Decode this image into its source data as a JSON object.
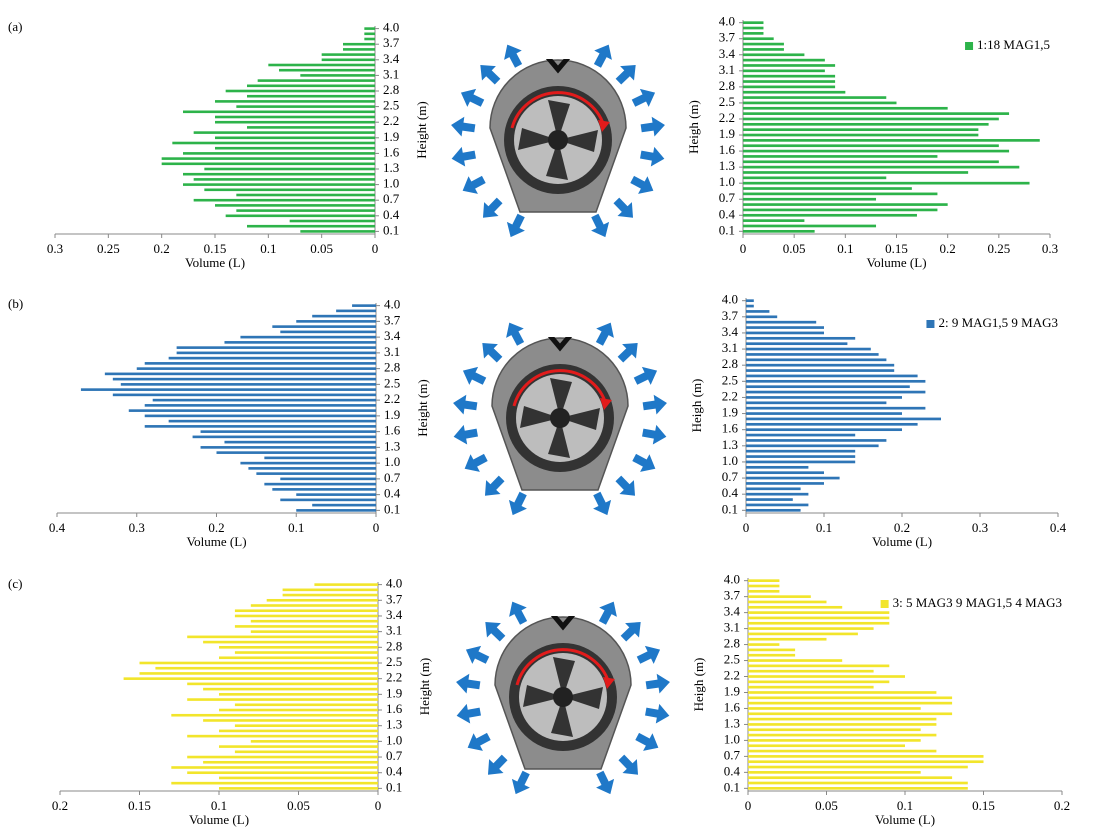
{
  "panels": [
    "(a)",
    "(b)",
    "(c)"
  ],
  "chart_data": [
    {
      "type": "hbar",
      "x_reversed": true,
      "xlabel": "Volume (L)",
      "ylabel": "Height (m)",
      "color": "#2db34a",
      "y": [
        0.1,
        0.2,
        0.3,
        0.4,
        0.5,
        0.6,
        0.7,
        0.8,
        0.9,
        1,
        1.1,
        1.2,
        1.3,
        1.4,
        1.5,
        1.6,
        1.7,
        1.8,
        1.9,
        2,
        2.1,
        2.2,
        2.3,
        2.4,
        2.5,
        2.6,
        2.7,
        2.8,
        2.9,
        3,
        3.1,
        3.2,
        3.3,
        3.4,
        3.5,
        3.6,
        3.7,
        3.8,
        3.9,
        4
      ],
      "values": [
        0.07,
        0.12,
        0.08,
        0.14,
        0.13,
        0.15,
        0.17,
        0.13,
        0.16,
        0.18,
        0.17,
        0.18,
        0.16,
        0.2,
        0.2,
        0.18,
        0.15,
        0.19,
        0.15,
        0.17,
        0.12,
        0.15,
        0.15,
        0.18,
        0.13,
        0.15,
        0.12,
        0.14,
        0.12,
        0.11,
        0.07,
        0.09,
        0.1,
        0.05,
        0.05,
        0.03,
        0.03,
        0.01,
        0.01,
        0.01
      ],
      "xlim": [
        0,
        0.3
      ],
      "xticks": [
        0,
        0.05,
        0.1,
        0.15,
        0.2,
        0.25,
        0.3
      ],
      "ylim": [
        0.05,
        4.05
      ],
      "yticks": [
        0.1,
        0.4,
        0.7,
        {
          "value": 1,
          "label": "1.0"
        },
        1.3,
        1.6,
        1.9,
        2.2,
        2.5,
        2.8,
        3.1,
        3.4,
        3.7,
        {
          "value": 4,
          "label": "4.0"
        }
      ]
    },
    {
      "type": "hbar",
      "x_reversed": false,
      "xlabel": "Volume (L)",
      "ylabel": "Heigh (m)",
      "legend": "upper right",
      "y": [
        0.1,
        0.2,
        0.3,
        0.4,
        0.5,
        0.6,
        0.7,
        0.8,
        0.9,
        1,
        1.1,
        1.2,
        1.3,
        1.4,
        1.5,
        1.6,
        1.7,
        1.8,
        1.9,
        2,
        2.1,
        2.2,
        2.3,
        2.4,
        2.5,
        2.6,
        2.7,
        2.8,
        2.9,
        3,
        3.1,
        3.2,
        3.3,
        3.4,
        3.5,
        3.6,
        3.7,
        3.8,
        3.9,
        4
      ],
      "series": [
        {
          "name": "1:18 MAG1,5",
          "color": "#2db34a",
          "values": [
            0.07,
            0.13,
            0.06,
            0.17,
            0.19,
            0.2,
            0.13,
            0.19,
            0.165,
            0.28,
            0.14,
            0.22,
            0.27,
            0.25,
            0.19,
            0.26,
            0.25,
            0.29,
            0.23,
            0.23,
            0.24,
            0.25,
            0.26,
            0.2,
            0.15,
            0.14,
            0.1,
            0.09,
            0.09,
            0.09,
            0.08,
            0.09,
            0.08,
            0.06,
            0.04,
            0.04,
            0.03,
            0.02,
            0.02,
            0.02
          ]
        }
      ],
      "xlim": [
        0,
        0.3
      ],
      "xticks": [
        0,
        0.05,
        0.1,
        0.15,
        0.2,
        0.25,
        0.3
      ],
      "ylim": [
        0.05,
        4.05
      ],
      "yticks": [
        0.1,
        0.4,
        0.7,
        {
          "value": 1,
          "label": "1.0"
        },
        1.3,
        1.6,
        1.9,
        2.2,
        2.5,
        2.8,
        3.1,
        3.4,
        3.7,
        {
          "value": 4,
          "label": "4.0"
        }
      ]
    },
    {
      "type": "hbar",
      "x_reversed": true,
      "xlabel": "Volume (L)",
      "ylabel": "Height (m)",
      "color": "#2e75b6",
      "y": [
        0.1,
        0.2,
        0.3,
        0.4,
        0.5,
        0.6,
        0.7,
        0.8,
        0.9,
        1,
        1.1,
        1.2,
        1.3,
        1.4,
        1.5,
        1.6,
        1.7,
        1.8,
        1.9,
        2,
        2.1,
        2.2,
        2.3,
        2.4,
        2.5,
        2.6,
        2.7,
        2.8,
        2.9,
        3,
        3.1,
        3.2,
        3.3,
        3.4,
        3.5,
        3.6,
        3.7,
        3.8,
        3.9,
        4
      ],
      "values": [
        0.1,
        0.08,
        0.12,
        0.1,
        0.13,
        0.14,
        0.12,
        0.15,
        0.16,
        0.17,
        0.14,
        0.2,
        0.22,
        0.19,
        0.23,
        0.22,
        0.29,
        0.26,
        0.29,
        0.31,
        0.29,
        0.28,
        0.33,
        0.37,
        0.32,
        0.33,
        0.34,
        0.3,
        0.29,
        0.26,
        0.25,
        0.25,
        0.19,
        0.17,
        0.12,
        0.13,
        0.1,
        0.08,
        0.05,
        0.03
      ],
      "xlim": [
        0,
        0.4
      ],
      "xticks": [
        0,
        0.1,
        0.2,
        0.3,
        0.4
      ],
      "ylim": [
        0.05,
        4.05
      ],
      "yticks": [
        0.1,
        0.4,
        0.7,
        {
          "value": 1,
          "label": "1.0"
        },
        1.3,
        1.6,
        1.9,
        2.2,
        2.5,
        2.8,
        3.1,
        3.4,
        3.7,
        {
          "value": 4,
          "label": "4.0"
        }
      ]
    },
    {
      "type": "hbar",
      "x_reversed": false,
      "xlabel": "Volume (L)",
      "ylabel": "Heigh (m)",
      "legend": "upper right",
      "y": [
        0.1,
        0.2,
        0.3,
        0.4,
        0.5,
        0.6,
        0.7,
        0.8,
        0.9,
        1,
        1.1,
        1.2,
        1.3,
        1.4,
        1.5,
        1.6,
        1.7,
        1.8,
        1.9,
        2,
        2.1,
        2.2,
        2.3,
        2.4,
        2.5,
        2.6,
        2.7,
        2.8,
        2.9,
        3,
        3.1,
        3.2,
        3.3,
        3.4,
        3.5,
        3.6,
        3.7,
        3.8,
        3.9,
        4
      ],
      "series": [
        {
          "name": "2: 9 MAG1,5 9 MAG3",
          "color": "#2e75b6",
          "values": [
            0.07,
            0.08,
            0.06,
            0.08,
            0.07,
            0.1,
            0.12,
            0.1,
            0.08,
            0.14,
            0.14,
            0.14,
            0.17,
            0.18,
            0.14,
            0.2,
            0.22,
            0.25,
            0.2,
            0.23,
            0.18,
            0.2,
            0.23,
            0.21,
            0.23,
            0.22,
            0.19,
            0.19,
            0.18,
            0.17,
            0.16,
            0.13,
            0.14,
            0.1,
            0.1,
            0.09,
            0.04,
            0.03,
            0.01,
            0.01
          ]
        }
      ],
      "xlim": [
        0,
        0.4
      ],
      "xticks": [
        0,
        0.1,
        0.2,
        0.3,
        0.4
      ],
      "ylim": [
        0.05,
        4.05
      ],
      "yticks": [
        0.1,
        0.4,
        0.7,
        {
          "value": 1,
          "label": "1.0"
        },
        1.3,
        1.6,
        1.9,
        2.2,
        2.5,
        2.8,
        3.1,
        3.4,
        3.7,
        {
          "value": 4,
          "label": "4.0"
        }
      ]
    },
    {
      "type": "hbar",
      "x_reversed": true,
      "xlabel": "Volume (L)",
      "ylabel": "Height (m)",
      "color": "#f2e52b",
      "y": [
        0.1,
        0.2,
        0.3,
        0.4,
        0.5,
        0.6,
        0.7,
        0.8,
        0.9,
        1,
        1.1,
        1.2,
        1.3,
        1.4,
        1.5,
        1.6,
        1.7,
        1.8,
        1.9,
        2,
        2.1,
        2.2,
        2.3,
        2.4,
        2.5,
        2.6,
        2.7,
        2.8,
        2.9,
        3,
        3.1,
        3.2,
        3.3,
        3.4,
        3.5,
        3.6,
        3.7,
        3.8,
        3.9,
        4
      ],
      "values": [
        0.1,
        0.13,
        0.1,
        0.12,
        0.13,
        0.11,
        0.12,
        0.09,
        0.1,
        0.08,
        0.12,
        0.1,
        0.09,
        0.11,
        0.13,
        0.1,
        0.09,
        0.12,
        0.1,
        0.11,
        0.12,
        0.16,
        0.15,
        0.14,
        0.15,
        0.1,
        0.09,
        0.1,
        0.11,
        0.12,
        0.08,
        0.09,
        0.08,
        0.09,
        0.09,
        0.08,
        0.07,
        0.06,
        0.06,
        0.04
      ],
      "xlim": [
        0,
        0.2
      ],
      "xticks": [
        0,
        0.05,
        0.1,
        0.15,
        0.2
      ],
      "ylim": [
        0.05,
        4.05
      ],
      "yticks": [
        0.1,
        0.4,
        0.7,
        {
          "value": 1,
          "label": "1.0"
        },
        1.3,
        1.6,
        1.9,
        2.2,
        2.5,
        2.8,
        3.1,
        3.4,
        3.7,
        {
          "value": 4,
          "label": "4.0"
        }
      ]
    },
    {
      "type": "hbar",
      "x_reversed": false,
      "xlabel": "Volume (L)",
      "ylabel": "Heigh (m)",
      "legend": "upper right",
      "y": [
        0.1,
        0.2,
        0.3,
        0.4,
        0.5,
        0.6,
        0.7,
        0.8,
        0.9,
        1,
        1.1,
        1.2,
        1.3,
        1.4,
        1.5,
        1.6,
        1.7,
        1.8,
        1.9,
        2,
        2.1,
        2.2,
        2.3,
        2.4,
        2.5,
        2.6,
        2.7,
        2.8,
        2.9,
        3,
        3.1,
        3.2,
        3.3,
        3.4,
        3.5,
        3.6,
        3.7,
        3.8,
        3.9,
        4
      ],
      "series": [
        {
          "name": "3: 5 MAG3 9 MAG1,5 4 MAG3",
          "color": "#f2e52b",
          "values": [
            0.14,
            0.14,
            0.13,
            0.11,
            0.14,
            0.15,
            0.15,
            0.12,
            0.1,
            0.11,
            0.12,
            0.11,
            0.12,
            0.12,
            0.13,
            0.11,
            0.13,
            0.13,
            0.12,
            0.08,
            0.09,
            0.1,
            0.08,
            0.09,
            0.06,
            0.03,
            0.03,
            0.02,
            0.05,
            0.07,
            0.08,
            0.09,
            0.09,
            0.09,
            0.06,
            0.05,
            0.04,
            0.02,
            0.02,
            0.02
          ]
        }
      ],
      "xlim": [
        0,
        0.2
      ],
      "xticks": [
        0,
        0.05,
        0.1,
        0.15,
        0.2
      ],
      "ylim": [
        0.05,
        4.05
      ],
      "yticks": [
        0.1,
        0.4,
        0.7,
        {
          "value": 1,
          "label": "1.0"
        },
        1.3,
        1.6,
        1.9,
        2.2,
        2.5,
        2.8,
        3.1,
        3.4,
        3.7,
        {
          "value": 4,
          "label": "4.0"
        }
      ]
    }
  ]
}
